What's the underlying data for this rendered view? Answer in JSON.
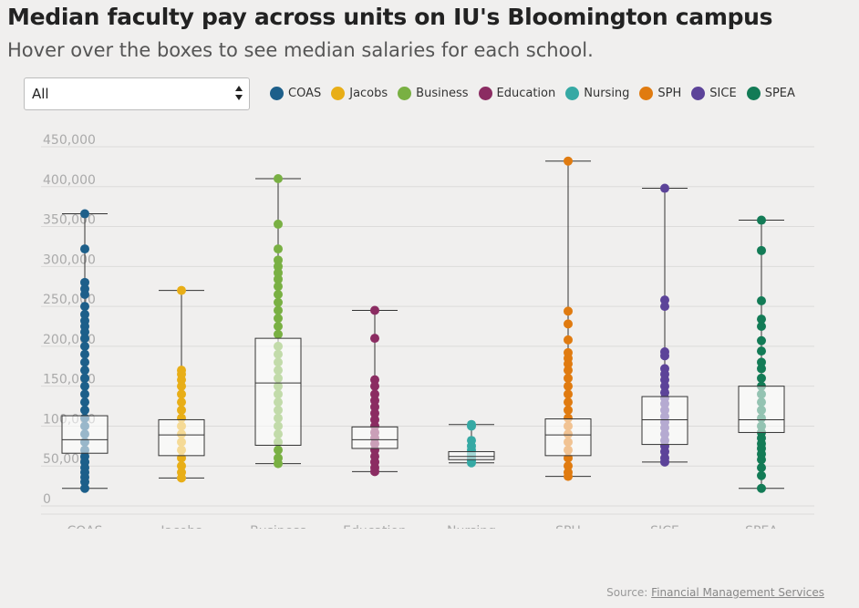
{
  "title": "Median faculty pay across units on IU's Bloomington campus",
  "subtitle": "Hover over the boxes to see median salaries for each school.",
  "filter": {
    "selected": "All"
  },
  "legend": [
    {
      "name": "COAS",
      "color": "#1d5f8a"
    },
    {
      "name": "Jacobs",
      "color": "#e8ae17"
    },
    {
      "name": "Business",
      "color": "#79b043"
    },
    {
      "name": "Education",
      "color": "#8b2c62"
    },
    {
      "name": "Nursing",
      "color": "#36a9a4"
    },
    {
      "name": "SPH",
      "color": "#e07b10"
    },
    {
      "name": "SICE",
      "color": "#5c4399"
    },
    {
      "name": "SPEA",
      "color": "#137b56"
    }
  ],
  "source": {
    "label": "Source:",
    "link_text": "Financial Management Services"
  },
  "chart_data": {
    "type": "box",
    "ylim": [
      0,
      450000
    ],
    "yticks": [
      0,
      50000,
      100000,
      150000,
      200000,
      250000,
      300000,
      350000,
      400000,
      450000
    ],
    "ytick_labels": [
      "0",
      "50,000",
      "100,000",
      "150,000",
      "200,000",
      "250,000",
      "300,000",
      "350,000",
      "400,000",
      "450,000"
    ],
    "grid": true,
    "legend_position": "top",
    "categories": [
      "COAS",
      "Jacobs",
      "Business",
      "Education",
      "Nursing",
      "SPH",
      "SICE",
      "SPEA"
    ],
    "boxes": [
      {
        "name": "COAS",
        "min": 22000,
        "q1": 66000,
        "median": 83000,
        "q3": 113000,
        "max": 366000,
        "points": [
          322000,
          280000,
          272000,
          265000,
          250000,
          240000,
          232000,
          225000,
          218000,
          210000,
          200000,
          190000,
          180000,
          170000,
          160000,
          150000,
          140000,
          130000,
          120000,
          110000,
          100000,
          90000,
          80000,
          70000,
          62000,
          55000,
          48000,
          42000,
          36000,
          30000
        ]
      },
      {
        "name": "Jacobs",
        "min": 35000,
        "q1": 63000,
        "median": 89000,
        "q3": 108000,
        "max": 270000,
        "points": [
          170000,
          165000,
          158000,
          150000,
          140000,
          130000,
          120000,
          110000,
          100000,
          90000,
          80000,
          70000,
          60000,
          50000,
          42000
        ]
      },
      {
        "name": "Business",
        "min": 53000,
        "q1": 76000,
        "median": 154000,
        "q3": 210000,
        "max": 410000,
        "points": [
          353000,
          322000,
          308000,
          300000,
          292000,
          284000,
          275000,
          265000,
          255000,
          245000,
          235000,
          225000,
          215000,
          200000,
          190000,
          180000,
          170000,
          160000,
          150000,
          140000,
          130000,
          120000,
          110000,
          100000,
          90000,
          80000,
          70000,
          60000
        ]
      },
      {
        "name": "Education",
        "min": 43000,
        "q1": 72000,
        "median": 83000,
        "q3": 99000,
        "max": 245000,
        "points": [
          210000,
          158000,
          150000,
          140000,
          132000,
          124000,
          116000,
          108000,
          100000,
          92000,
          85000,
          78000,
          70000,
          62000,
          55000,
          48000
        ]
      },
      {
        "name": "Nursing",
        "min": 54000,
        "q1": 58000,
        "median": 62000,
        "q3": 68000,
        "max": 102000,
        "points": [
          100000,
          82000,
          75000,
          70000,
          66000,
          63000,
          60000,
          57000
        ]
      },
      {
        "name": "SPH",
        "min": 37000,
        "q1": 63000,
        "median": 89000,
        "q3": 109000,
        "max": 432000,
        "points": [
          244000,
          228000,
          208000,
          192000,
          185000,
          178000,
          170000,
          160000,
          150000,
          140000,
          130000,
          120000,
          110000,
          100000,
          90000,
          80000,
          70000,
          60000,
          50000,
          42000
        ]
      },
      {
        "name": "SICE",
        "min": 55000,
        "q1": 77000,
        "median": 108000,
        "q3": 137000,
        "max": 398000,
        "points": [
          258000,
          250000,
          193000,
          188000,
          172000,
          165000,
          158000,
          150000,
          142000,
          135000,
          128000,
          120000,
          112000,
          105000,
          98000,
          90000,
          82000,
          75000,
          68000,
          60000
        ]
      },
      {
        "name": "SPEA",
        "min": 22000,
        "q1": 92000,
        "median": 108000,
        "q3": 150000,
        "max": 358000,
        "points": [
          320000,
          257000,
          234000,
          225000,
          207000,
          194000,
          180000,
          172000,
          160000,
          150000,
          140000,
          130000,
          120000,
          110000,
          100000,
          92000,
          85000,
          78000,
          72000,
          65000,
          58000,
          48000,
          38000
        ]
      }
    ]
  }
}
